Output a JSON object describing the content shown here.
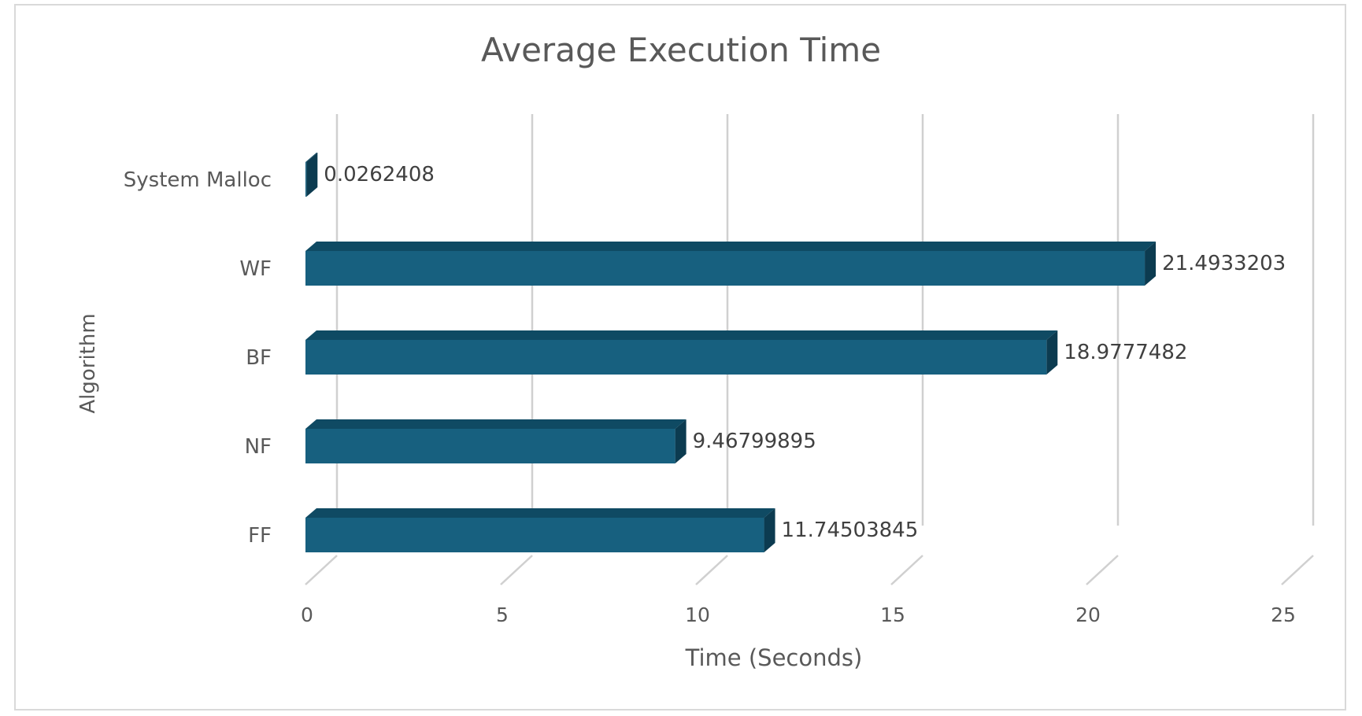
{
  "chart_data": {
    "type": "bar",
    "orientation": "horizontal",
    "style": "3d",
    "title": "Average Execution Time",
    "xlabel": "Time (Seconds)",
    "ylabel": "Algorithm",
    "categories": [
      "System Malloc",
      "WF",
      "BF",
      "NF",
      "FF"
    ],
    "values": [
      0.0262408,
      21.4933203,
      18.9777482,
      9.46799895,
      11.74503845
    ],
    "data_labels": [
      "0.0262408",
      "21.4933203",
      "18.9777482",
      "9.46799895",
      "11.74503845"
    ],
    "xlim": [
      0,
      25
    ],
    "xticks": [
      "0",
      "5",
      "10",
      "15",
      "20",
      "25"
    ],
    "grid": true,
    "legend": "none",
    "colors": {
      "bar_front": "#17607f",
      "bar_top": "#0f4a63",
      "bar_side": "#0c3b50",
      "grid": "#d0d0d0"
    }
  }
}
